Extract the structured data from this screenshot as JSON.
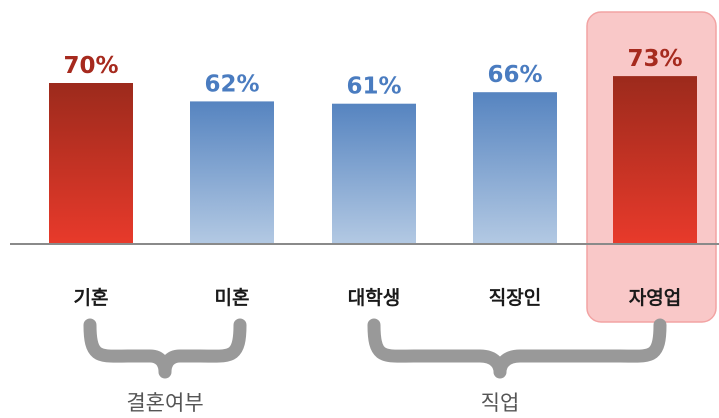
{
  "chart_data": {
    "type": "bar",
    "title": "",
    "xlabel": "",
    "ylabel": "",
    "categories": [
      "기혼",
      "미혼",
      "대학생",
      "직장인",
      "자영업"
    ],
    "values": [
      70,
      62,
      61,
      66,
      73
    ],
    "value_labels": [
      "70%",
      "62%",
      "61%",
      "66%",
      "73%"
    ],
    "ylim": [
      0,
      100
    ],
    "grid": false,
    "bar_colors": [
      "red",
      "blue",
      "blue",
      "blue",
      "red"
    ],
    "highlighted_category": "자영업",
    "groups": [
      {
        "label": "결혼여부",
        "categories": [
          "기혼",
          "미혼"
        ]
      },
      {
        "label": "직업",
        "categories": [
          "대학생",
          "직장인",
          "자영업"
        ]
      }
    ]
  },
  "colors": {
    "red_top": "#9c2a1c",
    "red_bottom": "#e83a2b",
    "red_label": "#a62a1e",
    "blue_top": "#5684c0",
    "blue_bottom": "#b3c9e3",
    "blue_label": "#4a7cc0",
    "highlight_bg": "#f9c8c8",
    "highlight_border": "#f2a3a3",
    "baseline": "#8a8a8a",
    "brace": "#999999"
  }
}
